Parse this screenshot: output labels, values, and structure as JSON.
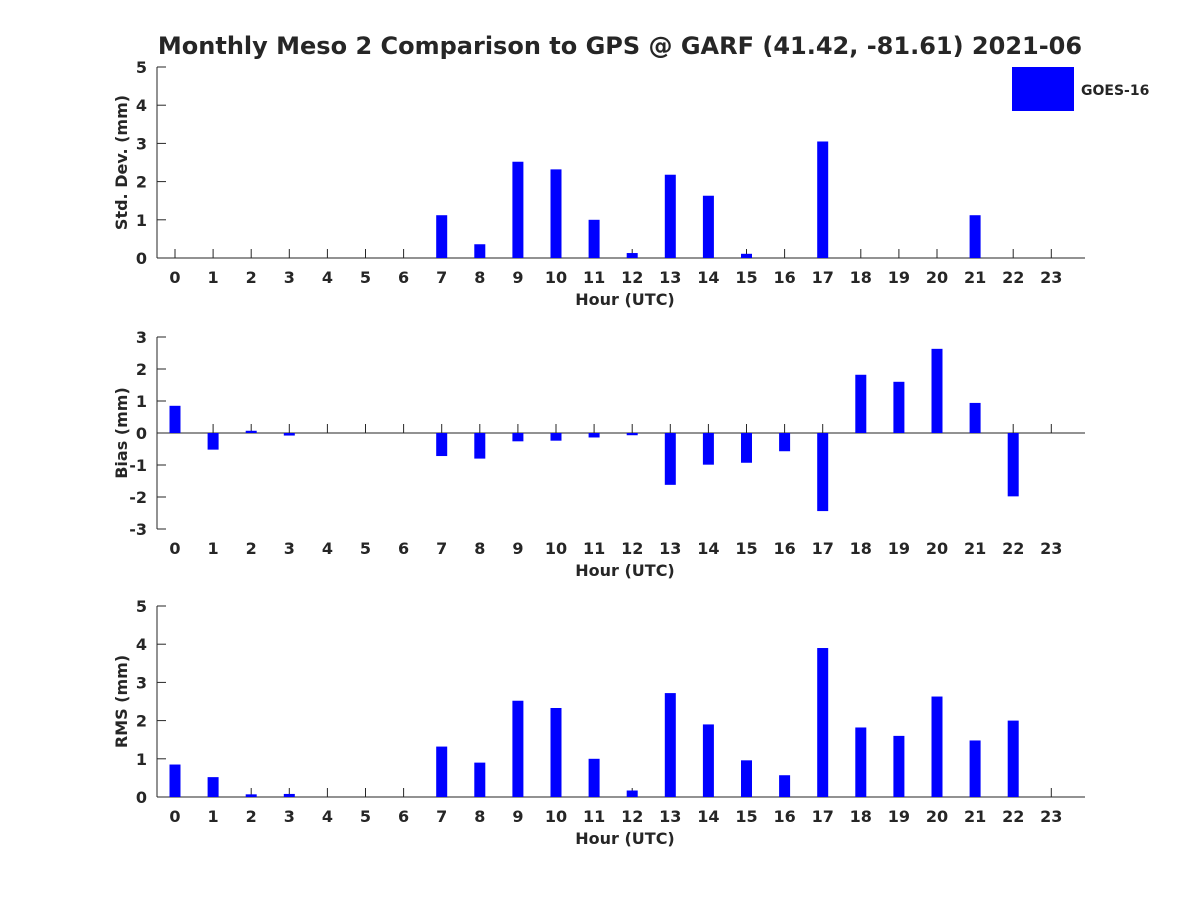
{
  "title": "Monthly Meso 2 Comparison to GPS @ GARF (41.42, -81.61) 2021-06",
  "legend": {
    "label": "GOES-16",
    "color": "#0000ff"
  },
  "chart_data": [
    {
      "type": "bar",
      "name": "stddev",
      "ylabel": "Std. Dev. (mm)",
      "xlabel": "Hour (UTC)",
      "ylim": [
        0,
        5
      ],
      "yticks": [
        0,
        1,
        2,
        3,
        4,
        5
      ],
      "categories": [
        "0",
        "1",
        "2",
        "3",
        "4",
        "5",
        "6",
        "7",
        "8",
        "9",
        "10",
        "11",
        "12",
        "13",
        "14",
        "15",
        "16",
        "17",
        "18",
        "19",
        "20",
        "21",
        "22",
        "23"
      ],
      "series": [
        {
          "name": "GOES-16",
          "values": [
            0,
            0,
            0,
            0,
            0,
            0,
            0,
            1.12,
            0.36,
            2.52,
            2.32,
            1.0,
            0.13,
            2.18,
            1.63,
            0.11,
            0,
            3.05,
            0,
            0,
            0,
            1.12,
            0,
            0
          ]
        }
      ]
    },
    {
      "type": "bar",
      "name": "bias",
      "ylabel": "Bias (mm)",
      "xlabel": "Hour (UTC)",
      "ylim": [
        -3,
        3
      ],
      "yticks": [
        -3,
        -2,
        -1,
        0,
        1,
        2,
        3
      ],
      "categories": [
        "0",
        "1",
        "2",
        "3",
        "4",
        "5",
        "6",
        "7",
        "8",
        "9",
        "10",
        "11",
        "12",
        "13",
        "14",
        "15",
        "16",
        "17",
        "18",
        "19",
        "20",
        "21",
        "22",
        "23"
      ],
      "series": [
        {
          "name": "GOES-16",
          "values": [
            0.85,
            -0.52,
            0.07,
            -0.08,
            0,
            0,
            0,
            -0.72,
            -0.8,
            -0.26,
            -0.24,
            -0.14,
            -0.07,
            -1.62,
            -0.99,
            -0.93,
            -0.57,
            -2.44,
            1.82,
            1.6,
            2.63,
            0.94,
            -1.98,
            0
          ]
        }
      ]
    },
    {
      "type": "bar",
      "name": "rms",
      "ylabel": "RMS (mm)",
      "xlabel": "Hour (UTC)",
      "ylim": [
        0,
        5
      ],
      "yticks": [
        0,
        1,
        2,
        3,
        4,
        5
      ],
      "categories": [
        "0",
        "1",
        "2",
        "3",
        "4",
        "5",
        "6",
        "7",
        "8",
        "9",
        "10",
        "11",
        "12",
        "13",
        "14",
        "15",
        "16",
        "17",
        "18",
        "19",
        "20",
        "21",
        "22",
        "23"
      ],
      "series": [
        {
          "name": "GOES-16",
          "values": [
            0.85,
            0.52,
            0.07,
            0.08,
            0,
            0,
            0,
            1.32,
            0.9,
            2.52,
            2.33,
            1.0,
            0.17,
            2.72,
            1.9,
            0.96,
            0.57,
            3.9,
            1.82,
            1.6,
            2.63,
            1.48,
            2.0,
            0
          ]
        }
      ]
    }
  ]
}
